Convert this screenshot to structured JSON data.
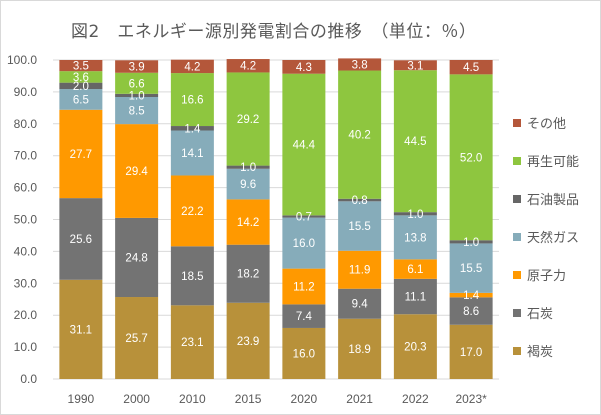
{
  "chart_data": {
    "type": "bar",
    "stacked": true,
    "title": "図2　エネルギー源別発電割合の推移　（単位：％）",
    "categories": [
      "1990",
      "2000",
      "2010",
      "2015",
      "2020",
      "2021",
      "2022",
      "2023*"
    ],
    "ylim": [
      0,
      100
    ],
    "yticks": [
      "0.0",
      "10.0",
      "20.0",
      "30.0",
      "40.0",
      "50.0",
      "60.0",
      "70.0",
      "80.0",
      "90.0",
      "100.0"
    ],
    "grid": true,
    "legend_position": "right",
    "series": [
      {
        "name": "褐炭",
        "color": "#b8913a",
        "values": [
          31.1,
          25.7,
          23.1,
          23.9,
          16.0,
          18.9,
          20.3,
          17.0
        ]
      },
      {
        "name": "石炭",
        "color": "#737373",
        "values": [
          25.6,
          24.8,
          18.5,
          18.2,
          7.4,
          9.4,
          11.1,
          8.6
        ]
      },
      {
        "name": "原子力",
        "color": "#ff9900",
        "values": [
          27.7,
          29.4,
          22.2,
          14.2,
          11.2,
          11.9,
          6.1,
          1.4
        ]
      },
      {
        "name": "天然ガス",
        "color": "#86acba",
        "values": [
          6.5,
          8.5,
          14.1,
          9.6,
          16.0,
          15.5,
          13.8,
          15.5
        ]
      },
      {
        "name": "石油製品",
        "color": "#666666",
        "values": [
          2.0,
          1.0,
          1.4,
          1.0,
          0.7,
          0.8,
          1.0,
          1.0
        ]
      },
      {
        "name": "再生可能",
        "color": "#8ec63f",
        "values": [
          3.6,
          6.6,
          16.6,
          29.2,
          44.4,
          40.2,
          44.5,
          52.0
        ]
      },
      {
        "name": "その他",
        "color": "#b4573a",
        "values": [
          3.5,
          3.9,
          4.2,
          4.2,
          4.3,
          3.8,
          3.1,
          4.5
        ]
      }
    ],
    "legend_order": [
      "その他",
      "再生可能",
      "石油製品",
      "天然ガス",
      "原子力",
      "石炭",
      "褐炭"
    ]
  }
}
